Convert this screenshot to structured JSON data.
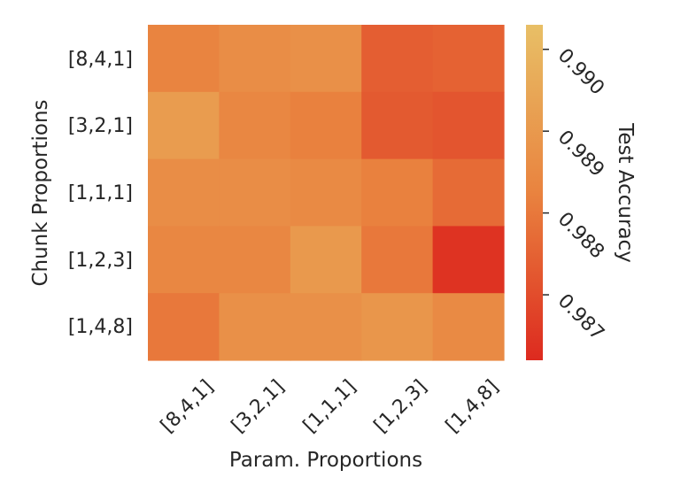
{
  "chart_data": {
    "type": "heatmap",
    "title": "",
    "xlabel": "Param. Proportions",
    "ylabel": "Chunk Proportions",
    "x_categories": [
      "[8,4,1]",
      "[3,2,1]",
      "[1,1,1]",
      "[1,2,3]",
      "[1,4,8]"
    ],
    "y_categories": [
      "[8,4,1]",
      "[3,2,1]",
      "[1,1,1]",
      "[1,2,3]",
      "[1,4,8]"
    ],
    "values": [
      [
        0.9883,
        0.9886,
        0.9887,
        0.9874,
        0.9875
      ],
      [
        0.9891,
        0.9884,
        0.9882,
        0.9873,
        0.9872
      ],
      [
        0.9886,
        0.9886,
        0.9885,
        0.9882,
        0.9877
      ],
      [
        0.9884,
        0.9884,
        0.989,
        0.988,
        0.9864
      ],
      [
        0.988,
        0.9887,
        0.9887,
        0.9889,
        0.9885
      ]
    ],
    "colorbar": {
      "label": "Test Accuracy",
      "vmin": 0.9862,
      "vmax": 0.9903,
      "ticks": [
        "0.987",
        "0.988",
        "0.989",
        "0.990"
      ],
      "colors": [
        "#dd2a1f",
        "#e9833f",
        "#e8bf66"
      ]
    }
  }
}
